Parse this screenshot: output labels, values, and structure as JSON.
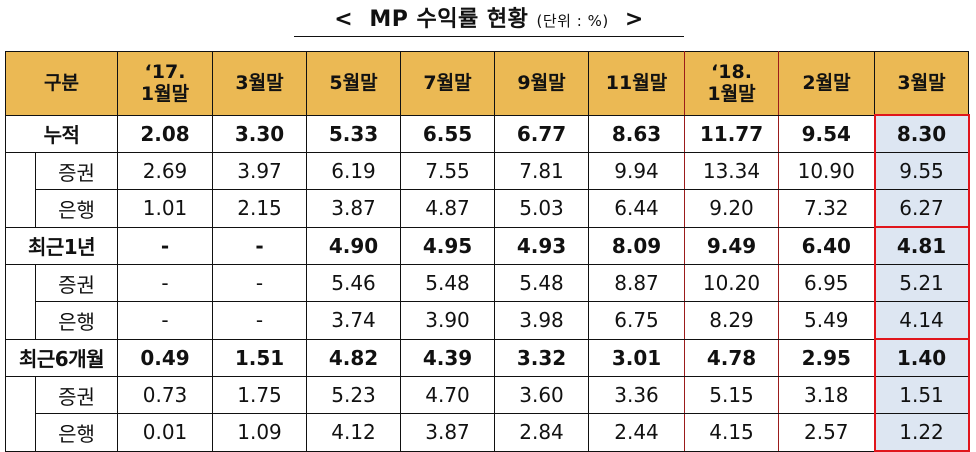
{
  "title": {
    "open": "<",
    "text": "MP 수익률 현황",
    "unit": "(단위 : %)",
    "close": ">"
  },
  "table": {
    "headers": [
      "구분",
      "'17.\n1월말",
      "3월말",
      "5월말",
      "7월말",
      "9월말",
      "11월말",
      "'18.\n1월말",
      "2월말",
      "3월말"
    ],
    "header_lines": {
      "h1a": "‘17.",
      "h1b": "1월말",
      "h7a": "‘18.",
      "h7b": "1월말"
    },
    "groups": [
      {
        "label": "누적",
        "values": [
          "2.08",
          "3.30",
          "5.33",
          "6.55",
          "6.77",
          "8.63",
          "11.77",
          "9.54",
          "8.30"
        ],
        "subs": [
          {
            "label": "증권",
            "values": [
              "2.69",
              "3.97",
              "6.19",
              "7.55",
              "7.81",
              "9.94",
              "13.34",
              "10.90",
              "9.55"
            ]
          },
          {
            "label": "은행",
            "values": [
              "1.01",
              "2.15",
              "3.87",
              "4.87",
              "5.03",
              "6.44",
              "9.20",
              "7.32",
              "6.27"
            ]
          }
        ]
      },
      {
        "label": "최근1년",
        "values": [
          "-",
          "-",
          "4.90",
          "4.95",
          "4.93",
          "8.09",
          "9.49",
          "6.40",
          "4.81"
        ],
        "subs": [
          {
            "label": "증권",
            "values": [
              "-",
              "-",
              "5.46",
              "5.48",
              "5.48",
              "8.87",
              "10.20",
              "6.95",
              "5.21"
            ]
          },
          {
            "label": "은행",
            "values": [
              "-",
              "-",
              "3.74",
              "3.90",
              "3.98",
              "6.75",
              "8.29",
              "5.49",
              "4.14"
            ]
          }
        ]
      },
      {
        "label": "최근6개월",
        "values": [
          "0.49",
          "1.51",
          "4.82",
          "4.39",
          "3.32",
          "3.01",
          "4.78",
          "2.95",
          "1.40"
        ],
        "subs": [
          {
            "label": "증권",
            "values": [
              "0.73",
              "1.75",
              "5.23",
              "4.70",
              "3.60",
              "3.36",
              "5.15",
              "3.18",
              "1.51"
            ]
          },
          {
            "label": "은행",
            "values": [
              "0.01",
              "1.09",
              "4.12",
              "3.87",
              "2.84",
              "2.44",
              "4.15",
              "2.57",
              "1.22"
            ]
          }
        ]
      }
    ]
  },
  "colors": {
    "header_bg": "#ebb954",
    "highlight_bg": "#dde6f2",
    "highlight_border": "#e0161c",
    "column_border": "#9b1b1b"
  }
}
